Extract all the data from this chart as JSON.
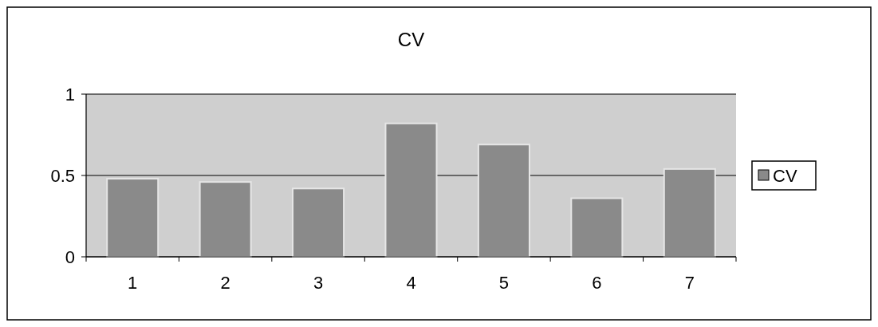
{
  "chart_data": {
    "type": "bar",
    "title": "CV",
    "categories": [
      "1",
      "2",
      "3",
      "4",
      "5",
      "6",
      "7"
    ],
    "series": [
      {
        "name": "CV",
        "color": "#8a8a8a",
        "values": [
          0.48,
          0.46,
          0.42,
          0.82,
          0.69,
          0.36,
          0.54
        ]
      }
    ],
    "ylim": [
      0,
      1
    ],
    "yticks": [
      0,
      0.5,
      1
    ],
    "grid": "y",
    "legend": "right"
  }
}
